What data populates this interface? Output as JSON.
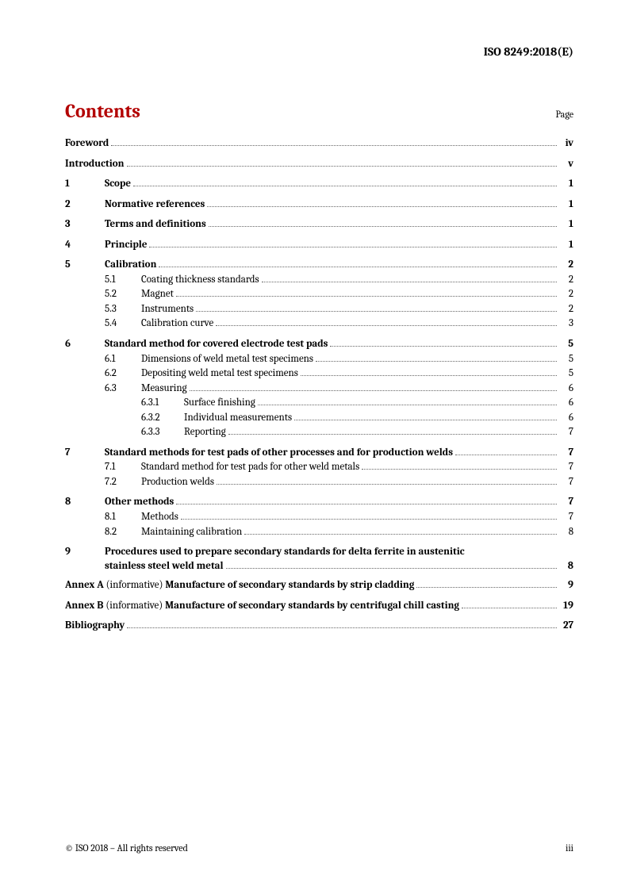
{
  "doc_id": "ISO 8249:2018(E)",
  "contents_title": "Contents",
  "page_label": "Page",
  "footer_left": "© ISO 2018 – All rights reserved",
  "footer_right": "iii",
  "toc": {
    "foreword": {
      "title": "Foreword",
      "page": "iv"
    },
    "introduction": {
      "title": "Introduction",
      "page": "v"
    },
    "s1": {
      "num": "1",
      "title": "Scope",
      "page": "1"
    },
    "s2": {
      "num": "2",
      "title": "Normative references",
      "page": "1"
    },
    "s3": {
      "num": "3",
      "title": "Terms and definitions",
      "page": "1"
    },
    "s4": {
      "num": "4",
      "title": "Principle",
      "page": "1"
    },
    "s5": {
      "num": "5",
      "title": "Calibration",
      "page": "2",
      "s5_1": {
        "num": "5.1",
        "title": "Coating thickness standards",
        "page": "2"
      },
      "s5_2": {
        "num": "5.2",
        "title": "Magnet",
        "page": "2"
      },
      "s5_3": {
        "num": "5.3",
        "title": "Instruments",
        "page": "2"
      },
      "s5_4": {
        "num": "5.4",
        "title": "Calibration curve",
        "page": "3"
      }
    },
    "s6": {
      "num": "6",
      "title": "Standard method for covered electrode test pads",
      "page": "5",
      "s6_1": {
        "num": "6.1",
        "title": "Dimensions of weld metal test specimens",
        "page": "5"
      },
      "s6_2": {
        "num": "6.2",
        "title": "Depositing weld metal test specimens",
        "page": "5"
      },
      "s6_3": {
        "num": "6.3",
        "title": "Measuring",
        "page": "6",
        "s6_3_1": {
          "num": "6.3.1",
          "title": "Surface finishing",
          "page": "6"
        },
        "s6_3_2": {
          "num": "6.3.2",
          "title": "Individual measurements",
          "page": "6"
        },
        "s6_3_3": {
          "num": "6.3.3",
          "title": "Reporting",
          "page": "7"
        }
      }
    },
    "s7": {
      "num": "7",
      "title": "Standard methods for test pads of other processes and for production welds",
      "page": "7",
      "s7_1": {
        "num": "7.1",
        "title": "Standard method for test pads for other weld metals",
        "page": "7"
      },
      "s7_2": {
        "num": "7.2",
        "title": "Production welds",
        "page": "7"
      }
    },
    "s8": {
      "num": "8",
      "title": "Other methods",
      "page": "7",
      "s8_1": {
        "num": "8.1",
        "title": "Methods",
        "page": "7"
      },
      "s8_2": {
        "num": "8.2",
        "title": "Maintaining calibration",
        "page": "8"
      }
    },
    "s9": {
      "num": "9",
      "line1": "Procedures used to prepare secondary standards for delta ferrite in austenitic",
      "line2": "stainless steel weld metal",
      "page": "8"
    },
    "annexA": {
      "prefix": "Annex A",
      "paren": " (informative) ",
      "rest": "Manufacture of secondary standards by strip cladding",
      "page": "9"
    },
    "annexB": {
      "prefix": "Annex B",
      "paren": " (informative) ",
      "rest": "Manufacture of secondary standards by centrifugal chill casting",
      "page": "19"
    },
    "bibliography": {
      "title": "Bibliography",
      "page": "27"
    }
  }
}
